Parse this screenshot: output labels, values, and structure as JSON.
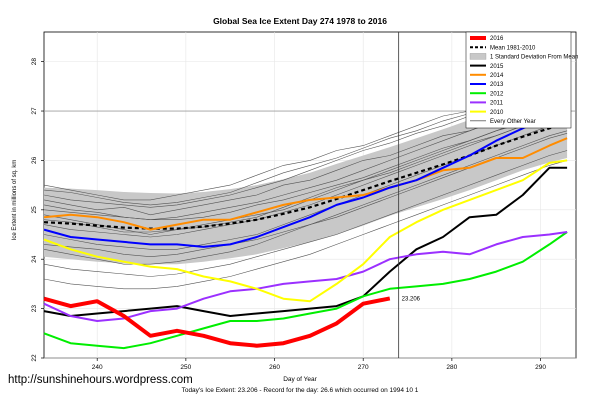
{
  "credit": "http://sunshinehours.wordpress.com",
  "footnote": "Today's Ice Extent: 23.206 - Record for the day: 26.6 which occurred on 1994 10 1",
  "chart_data": {
    "type": "line",
    "title": "Global Sea Ice Extent Day 274 1978 to 2016",
    "xlabel": "Day of Year",
    "ylabel": "Ice Extent in millions of sq. km",
    "xlim": [
      234,
      294
    ],
    "ylim": [
      22,
      28.6
    ],
    "xticks": [
      240,
      250,
      260,
      270,
      280,
      290
    ],
    "yticks": [
      22,
      23,
      24,
      25,
      26,
      27,
      28
    ],
    "grid": true,
    "legend_position": "top-right",
    "marker": {
      "day": 274,
      "label": "23.206",
      "value": 23.206
    },
    "colors": {
      "2016": "#ff0000",
      "mean": "#000000",
      "band": "#c8c8c8",
      "2015": "#000000",
      "2014": "#ff8c00",
      "2013": "#0000ff",
      "2012": "#00ee00",
      "2011": "#9b30ff",
      "2010": "#ffff00",
      "other": "#555555"
    },
    "legend": [
      {
        "label": "2016",
        "color": "#ff0000",
        "kind": "thick"
      },
      {
        "label": "Mean 1981-2010",
        "color": "#000000",
        "kind": "dash"
      },
      {
        "label": "1 Standard Deviation From Mean",
        "color": "#c8c8c8",
        "kind": "box"
      },
      {
        "label": "2015",
        "color": "#000000",
        "kind": "line"
      },
      {
        "label": "2014",
        "color": "#ff8c00",
        "kind": "line"
      },
      {
        "label": "2013",
        "color": "#0000ff",
        "kind": "line"
      },
      {
        "label": "2012",
        "color": "#00ee00",
        "kind": "line"
      },
      {
        "label": "2011",
        "color": "#9b30ff",
        "kind": "line"
      },
      {
        "label": "2010",
        "color": "#ffff00",
        "kind": "line"
      },
      {
        "label": "Every Other Year",
        "color": "#555555",
        "kind": "thin"
      }
    ],
    "x": [
      234,
      237,
      240,
      243,
      246,
      249,
      252,
      255,
      258,
      261,
      264,
      267,
      270,
      273,
      276,
      279,
      282,
      285,
      288,
      291,
      293
    ],
    "mean": [
      24.75,
      24.72,
      24.68,
      24.64,
      24.62,
      24.62,
      24.66,
      24.72,
      24.8,
      24.92,
      25.05,
      25.22,
      25.4,
      25.58,
      25.75,
      25.92,
      26.1,
      26.3,
      26.48,
      26.65,
      26.75
    ],
    "band_upper": [
      25.45,
      25.43,
      25.4,
      25.36,
      25.34,
      25.33,
      25.36,
      25.42,
      25.5,
      25.62,
      25.75,
      25.93,
      26.1,
      26.27,
      26.45,
      26.63,
      26.82,
      27.0,
      27.18,
      27.34,
      27.45
    ],
    "band_lower": [
      24.05,
      24.0,
      23.95,
      23.92,
      23.9,
      23.9,
      23.95,
      24.02,
      24.1,
      24.22,
      24.35,
      24.5,
      24.68,
      24.88,
      25.05,
      25.22,
      25.4,
      25.6,
      25.8,
      25.96,
      26.05
    ],
    "series": [
      {
        "name": "2016",
        "width": 4,
        "values": [
          23.2,
          23.05,
          23.15,
          22.85,
          22.45,
          22.55,
          22.45,
          22.3,
          22.25,
          22.3,
          22.45,
          22.7,
          23.1,
          23.206,
          null,
          null,
          null,
          null,
          null,
          null,
          null
        ]
      },
      {
        "name": "2015",
        "width": 2,
        "values": [
          22.95,
          22.85,
          22.9,
          22.95,
          23.0,
          23.05,
          22.95,
          22.85,
          22.9,
          22.95,
          23.0,
          23.05,
          23.25,
          23.75,
          24.2,
          24.45,
          24.85,
          24.9,
          25.3,
          25.85,
          25.85
        ]
      },
      {
        "name": "2014",
        "width": 2,
        "values": [
          24.85,
          24.9,
          24.85,
          24.75,
          24.6,
          24.7,
          24.8,
          24.8,
          24.95,
          25.1,
          25.2,
          25.25,
          25.3,
          25.45,
          25.6,
          25.8,
          25.85,
          26.05,
          26.05,
          26.3,
          26.45
        ]
      },
      {
        "name": "2013",
        "width": 2,
        "values": [
          24.6,
          24.45,
          24.4,
          24.35,
          24.3,
          24.3,
          24.25,
          24.3,
          24.45,
          24.65,
          24.85,
          25.1,
          25.25,
          25.45,
          25.6,
          25.85,
          26.1,
          26.4,
          26.65,
          26.9,
          26.9
        ]
      },
      {
        "name": "2012",
        "width": 2,
        "values": [
          22.5,
          22.3,
          22.25,
          22.2,
          22.3,
          22.45,
          22.6,
          22.75,
          22.75,
          22.8,
          22.9,
          23.0,
          23.25,
          23.4,
          23.45,
          23.5,
          23.6,
          23.75,
          23.95,
          24.3,
          24.55
        ]
      },
      {
        "name": "2011",
        "width": 2,
        "values": [
          23.1,
          22.85,
          22.75,
          22.8,
          22.95,
          23.0,
          23.2,
          23.35,
          23.4,
          23.5,
          23.55,
          23.6,
          23.75,
          24.0,
          24.1,
          24.15,
          24.1,
          24.3,
          24.45,
          24.5,
          24.55
        ]
      },
      {
        "name": "2010",
        "width": 2,
        "values": [
          24.4,
          24.2,
          24.05,
          23.95,
          23.85,
          23.8,
          23.65,
          23.55,
          23.4,
          23.2,
          23.15,
          23.5,
          23.9,
          24.45,
          24.75,
          25.0,
          25.2,
          25.4,
          25.6,
          25.95,
          26.0
        ]
      }
    ],
    "other_years": [
      [
        25.2,
        25.1,
        25.0,
        25.05,
        24.9,
        25.0,
        25.1,
        25.2,
        25.3,
        25.5,
        25.6,
        25.8,
        26.0,
        26.1,
        26.3,
        26.5,
        26.6,
        26.8,
        27.0,
        27.2,
        27.3
      ],
      [
        24.9,
        24.8,
        24.7,
        24.6,
        24.5,
        24.6,
        24.7,
        24.8,
        24.9,
        25.0,
        25.2,
        25.4,
        25.6,
        25.8,
        26.0,
        26.2,
        26.4,
        26.6,
        26.8,
        27.0,
        27.1
      ],
      [
        24.5,
        24.4,
        24.3,
        24.25,
        24.2,
        24.2,
        24.3,
        24.4,
        24.5,
        24.7,
        24.9,
        25.1,
        25.3,
        25.5,
        25.7,
        25.9,
        26.1,
        26.3,
        26.5,
        26.7,
        26.8
      ],
      [
        25.5,
        25.4,
        25.3,
        25.2,
        25.2,
        25.3,
        25.4,
        25.5,
        25.7,
        25.9,
        26.0,
        26.2,
        26.3,
        26.5,
        26.7,
        26.9,
        27.0,
        27.2,
        27.3,
        27.5,
        27.6
      ],
      [
        24.2,
        24.1,
        24.0,
        23.9,
        23.9,
        23.95,
        24.05,
        24.15,
        24.3,
        24.5,
        24.7,
        24.9,
        25.1,
        25.3,
        25.5,
        25.7,
        25.9,
        26.1,
        26.3,
        26.5,
        26.6
      ],
      [
        25.0,
        24.95,
        24.9,
        24.85,
        24.8,
        24.85,
        24.95,
        25.05,
        25.15,
        25.3,
        25.45,
        25.6,
        25.8,
        26.0,
        26.2,
        26.4,
        26.6,
        26.8,
        27.0,
        27.15,
        27.25
      ],
      [
        24.7,
        24.6,
        24.55,
        24.5,
        24.45,
        24.5,
        24.6,
        24.7,
        24.8,
        24.95,
        25.1,
        25.3,
        25.5,
        25.7,
        25.9,
        26.1,
        26.3,
        26.5,
        26.7,
        26.85,
        26.95
      ],
      [
        25.3,
        25.2,
        25.15,
        25.1,
        25.05,
        25.1,
        25.2,
        25.3,
        25.45,
        25.6,
        25.8,
        26.0,
        26.2,
        26.35,
        26.55,
        26.7,
        26.9,
        27.1,
        27.25,
        27.4,
        27.5
      ],
      [
        24.3,
        24.25,
        24.2,
        24.1,
        24.05,
        24.1,
        24.2,
        24.3,
        24.4,
        24.55,
        24.7,
        24.85,
        25.05,
        25.25,
        25.45,
        25.65,
        25.85,
        26.05,
        26.25,
        26.45,
        26.55
      ],
      [
        23.9,
        23.8,
        23.75,
        23.7,
        23.65,
        23.7,
        23.8,
        23.9,
        24.05,
        24.2,
        24.35,
        24.5,
        24.7,
        24.9,
        25.1,
        25.3,
        25.5,
        25.7,
        25.9,
        26.1,
        26.2
      ],
      [
        25.1,
        25.0,
        24.95,
        24.85,
        24.8,
        24.8,
        24.85,
        24.95,
        25.1,
        25.2,
        25.35,
        25.5,
        25.65,
        25.85,
        26.05,
        26.25,
        26.4,
        26.6,
        26.75,
        26.9,
        27.0
      ],
      [
        24.8,
        24.75,
        24.65,
        24.55,
        24.55,
        24.6,
        24.65,
        24.75,
        24.85,
        25.05,
        25.25,
        25.45,
        25.6,
        25.75,
        25.95,
        26.15,
        26.35,
        26.5,
        26.7,
        26.9,
        27.0
      ],
      [
        23.6,
        23.5,
        23.45,
        23.4,
        23.4,
        23.45,
        23.55,
        23.65,
        23.8,
        23.95,
        24.1,
        24.3,
        24.5,
        24.7,
        24.9,
        25.1,
        25.3,
        25.5,
        25.7,
        25.9,
        26.0
      ],
      [
        25.4,
        25.35,
        25.25,
        25.15,
        25.1,
        25.15,
        25.25,
        25.35,
        25.55,
        25.75,
        25.9,
        26.05,
        26.25,
        26.45,
        26.6,
        26.8,
        26.95,
        27.1,
        27.25,
        27.45,
        27.55
      ]
    ]
  }
}
